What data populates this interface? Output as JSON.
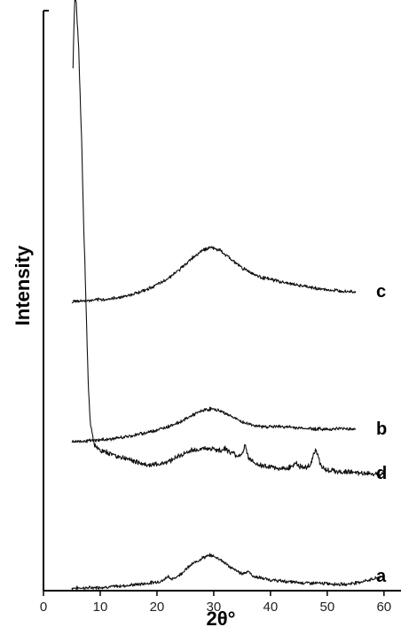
{
  "chart_data": {
    "type": "line",
    "title": "",
    "xlabel": "2θ°",
    "ylabel": "Intensity",
    "xlim": [
      0,
      63
    ],
    "xticks": [
      0,
      10,
      20,
      30,
      40,
      50,
      60
    ],
    "xtick_labels": [
      "0",
      "10",
      "20",
      "30",
      "40",
      "50",
      "60"
    ],
    "yticks_shown": false,
    "grid": false,
    "legend": "none",
    "line_color": "#111111",
    "series": [
      {
        "name": "a",
        "x": [
          5,
          8,
          12,
          15,
          18,
          21,
          22,
          22.5,
          24,
          26,
          28,
          29.5,
          31,
          33,
          35,
          36,
          37,
          40,
          45,
          50,
          53,
          56,
          58,
          60
        ],
        "y": [
          1.5,
          1.6,
          2.2,
          3.0,
          4.0,
          5.5,
          8.5,
          6.0,
          9.0,
          14.5,
          18.5,
          20.0,
          18.0,
          13.0,
          9.5,
          11.0,
          8.0,
          6.0,
          4.5,
          4.0,
          3.5,
          5.0,
          6.5,
          8.0
        ]
      },
      {
        "name": "b",
        "x": [
          5,
          8,
          12,
          15,
          18,
          21,
          24,
          26,
          28,
          29.5,
          31,
          33,
          35,
          38,
          42,
          46,
          50,
          53,
          55
        ],
        "y": [
          84,
          84.5,
          85.5,
          87,
          89,
          91.5,
          95,
          98.5,
          101.5,
          102.5,
          101.5,
          98.5,
          95,
          92.5,
          92.5,
          91.5,
          91,
          91.5,
          91
        ]
      },
      {
        "name": "c",
        "x": [
          5,
          8,
          12,
          15,
          18,
          21,
          24,
          26,
          28,
          29.5,
          31,
          33,
          35,
          38,
          42,
          46,
          50,
          53,
          55
        ],
        "y": [
          163,
          163.5,
          164.5,
          166.5,
          169.5,
          174,
          181,
          187,
          192,
          193.5,
          192,
          187,
          182,
          177,
          174,
          171.5,
          169.5,
          169,
          168.5
        ]
      },
      {
        "name": "d",
        "x": [
          5.2,
          5.5,
          5.8,
          6.2,
          6.5,
          6.8,
          7.0,
          7.3,
          7.6,
          7.9,
          8.3,
          9,
          10,
          12,
          14,
          16,
          18,
          20,
          22,
          24,
          26,
          28,
          30,
          31,
          32,
          33,
          34,
          35,
          35.5,
          36,
          37,
          39,
          41,
          43,
          44.5,
          45,
          46,
          47,
          47.5,
          48,
          48.5,
          49,
          50,
          52,
          54,
          56,
          58,
          60
        ],
        "y": [
          295,
          335,
          330,
          305,
          275,
          245,
          215,
          185,
          150,
          115,
          93,
          82,
          79,
          77,
          75,
          73,
          71,
          71,
          73,
          76,
          79,
          80,
          80,
          79,
          80,
          78,
          76,
          77,
          82,
          76,
          72,
          70,
          69,
          69,
          72,
          70,
          69,
          71,
          76,
          80,
          74,
          70,
          68,
          67,
          67,
          66,
          66,
          66
        ]
      }
    ]
  }
}
